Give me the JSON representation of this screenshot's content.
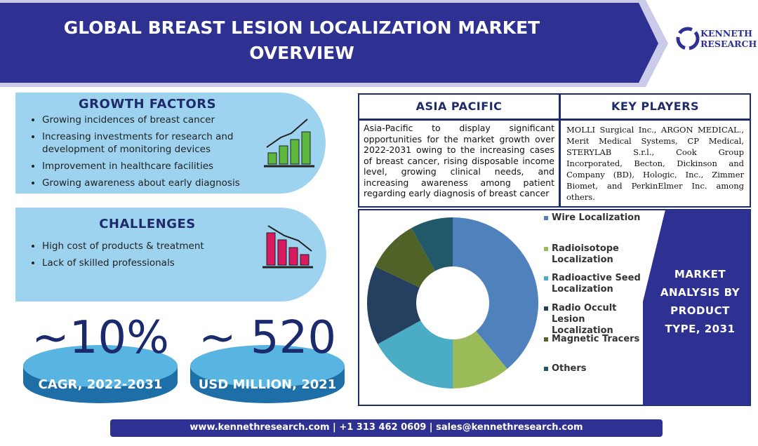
{
  "header": {
    "title": "GLOBAL BREAST LESION LOCALIZATION MARKET OVERVIEW",
    "logo": [
      "KENNETH",
      "RESEARCH"
    ]
  },
  "growth_factors": {
    "title": "GROWTH FACTORS",
    "items": [
      "Growing incidences of breast cancer",
      "Increasing investments for research and development of monitoring devices",
      "Improvement in healthcare facilities",
      "Growing awareness about early diagnosis"
    ]
  },
  "challenges": {
    "title": "CHALLENGES",
    "items": [
      "High cost of products & treatment",
      "Lack of skilled professionals"
    ]
  },
  "stats": [
    {
      "value": "~10%",
      "label": "CAGR, 2022-2031"
    },
    {
      "value": "~ 520",
      "label": "USD MILLION, 2021"
    }
  ],
  "asia_pacific": {
    "title": "ASIA PACIFIC",
    "text": "Asia-Pacific to display significant opportunities for the market growth over 2022-2031 owing to the increasing cases of breast cancer, rising disposable income level, growing clinical needs, and increasing awareness among patient regarding early diagnosis of breast cancer"
  },
  "key_players": {
    "title": "KEY PLAYERS",
    "text": "MOLLI Surgical Inc., ARGON MEDICAL., Merit Medical Systems, CP Medical, STERYLAB S.r.l., Cook Group Incorporated, Becton, Dickinson and Company (BD), Hologic, Inc., Zimmer Biomet, and PerkinElmer Inc. among others."
  },
  "chart_data": {
    "type": "donut",
    "title": "MARKET ANALYSIS BY PRODUCT TYPE, 2031",
    "categories": [
      "Wire Localization",
      "Radioisotope Localization",
      "Radioactive Seed Localization",
      "Radio Occult Lesion Localization",
      "Magnetic Tracers",
      "Others"
    ],
    "values": [
      39,
      11,
      17,
      15,
      10,
      8
    ],
    "colors": [
      "#4f81bd",
      "#9bbb59",
      "#4bacc6",
      "#243f60",
      "#4f6228",
      "#215968"
    ]
  },
  "footer": "www.kennethresearch.com | +1 313 462 0609 | sales@kennethresearch.com"
}
